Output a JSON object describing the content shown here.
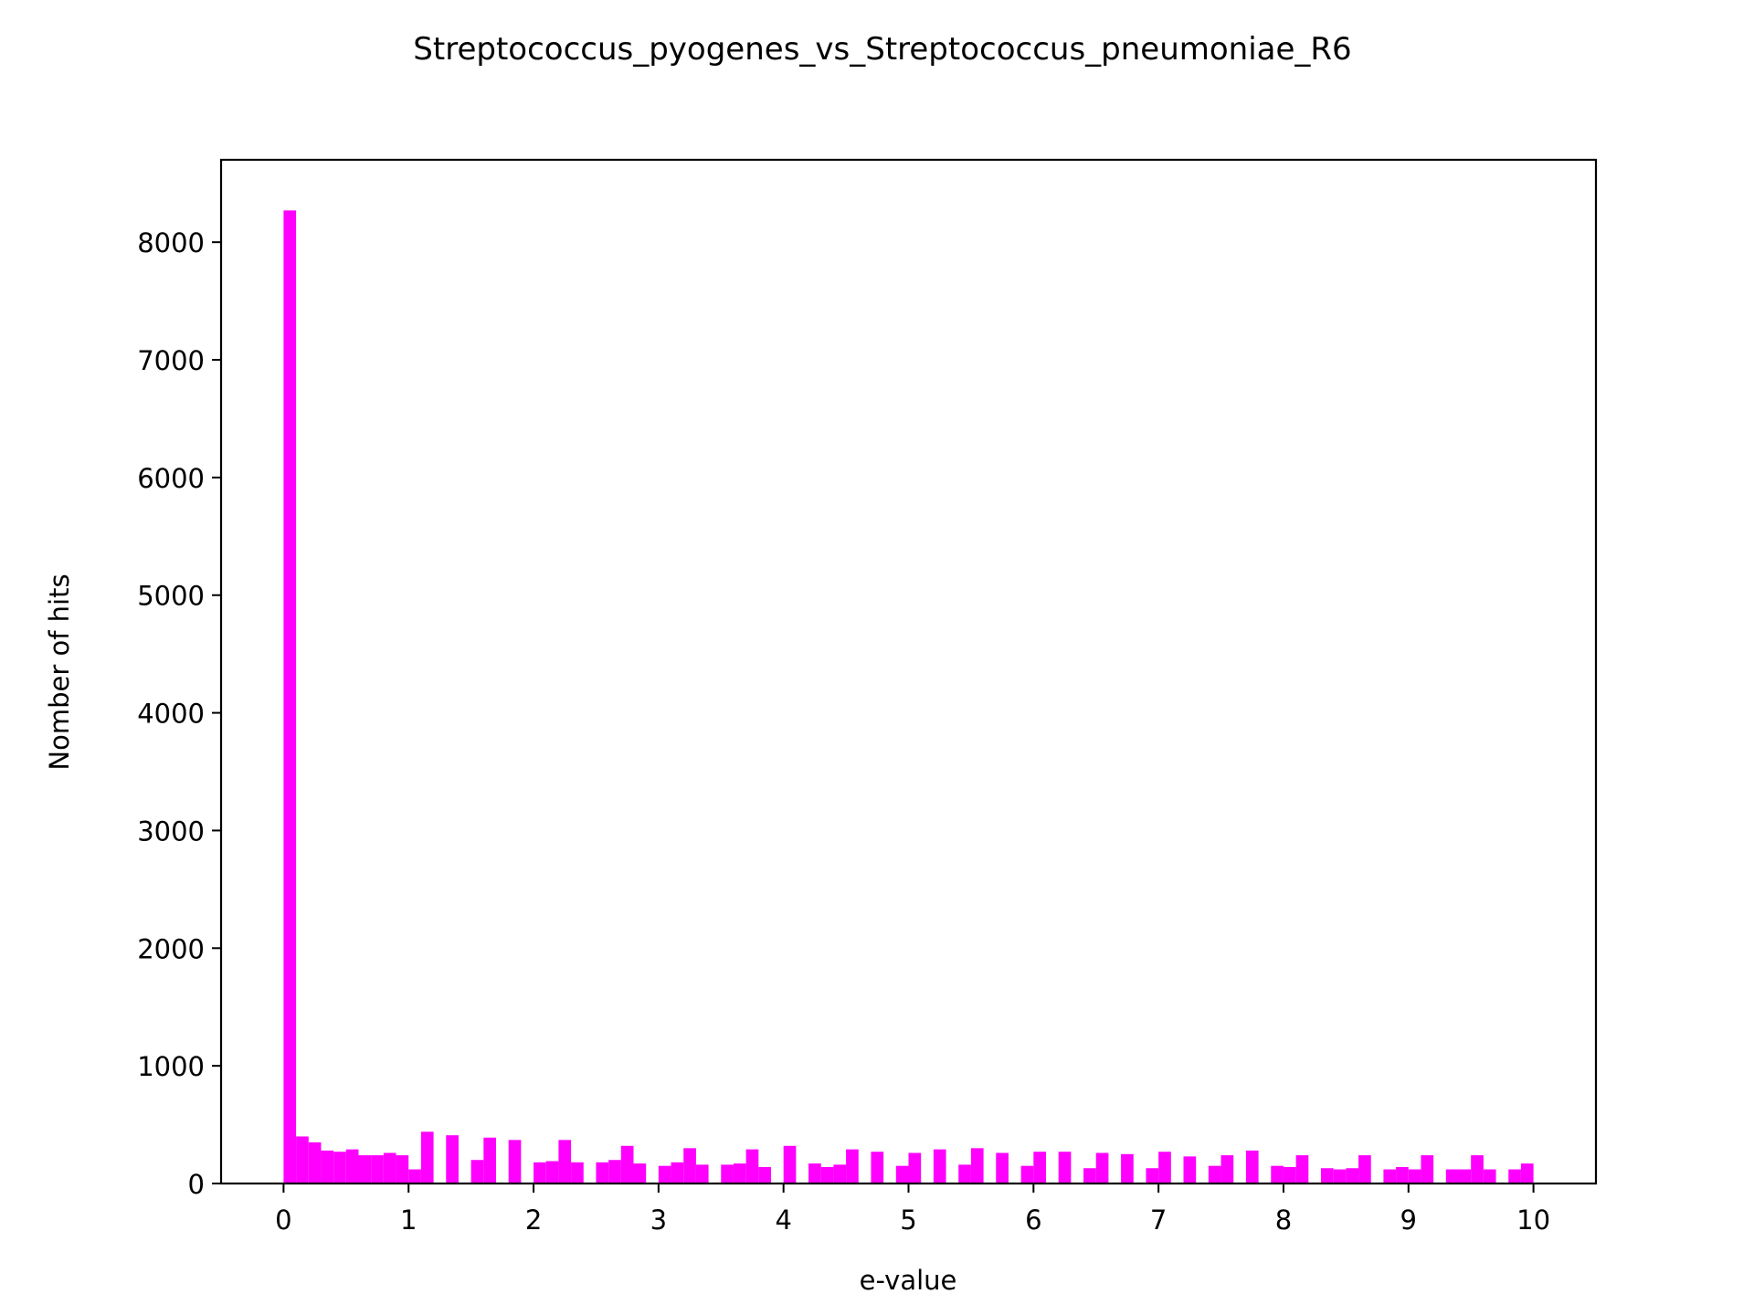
{
  "chart_data": {
    "type": "bar",
    "title": "Streptococcus_pyogenes_vs_Streptococcus_pneumoniae_R6",
    "xlabel": "e-value",
    "ylabel": "Nomber of hits",
    "xlim": [
      -0.5,
      10.5
    ],
    "ylim": [
      0,
      8700
    ],
    "xticks": [
      0,
      1,
      2,
      3,
      4,
      5,
      6,
      7,
      8,
      9,
      10
    ],
    "yticks": [
      0,
      1000,
      2000,
      3000,
      4000,
      5000,
      6000,
      7000,
      8000
    ],
    "xtick_labels": [
      "0",
      "1",
      "2",
      "3",
      "4",
      "5",
      "6",
      "7",
      "8",
      "9",
      "10"
    ],
    "ytick_labels": [
      "0",
      "1000",
      "2000",
      "3000",
      "4000",
      "5000",
      "6000",
      "7000",
      "8000"
    ],
    "bin_width": 0.1,
    "x": [
      0.0,
      0.1,
      0.2,
      0.3,
      0.4,
      0.5,
      0.6,
      0.7,
      0.8,
      0.9,
      1.0,
      1.1,
      1.2,
      1.3,
      1.4,
      1.5,
      1.6,
      1.7,
      1.8,
      1.9,
      2.0,
      2.1,
      2.2,
      2.3,
      2.4,
      2.5,
      2.6,
      2.7,
      2.8,
      2.9,
      3.0,
      3.1,
      3.2,
      3.3,
      3.4,
      3.5,
      3.6,
      3.7,
      3.8,
      3.9,
      4.0,
      4.1,
      4.2,
      4.3,
      4.4,
      4.5,
      4.6,
      4.7,
      4.8,
      4.9,
      5.0,
      5.1,
      5.2,
      5.3,
      5.4,
      5.5,
      5.6,
      5.7,
      5.8,
      5.9,
      6.0,
      6.1,
      6.2,
      6.3,
      6.4,
      6.5,
      6.6,
      6.7,
      6.8,
      6.9,
      7.0,
      7.1,
      7.2,
      7.3,
      7.4,
      7.5,
      7.6,
      7.7,
      7.8,
      7.9,
      8.0,
      8.1,
      8.2,
      8.3,
      8.4,
      8.5,
      8.6,
      8.7,
      8.8,
      8.9,
      9.0,
      9.1,
      9.2,
      9.3,
      9.4,
      9.5,
      9.6,
      9.7,
      9.8,
      9.9
    ],
    "values": [
      8270,
      400,
      350,
      280,
      270,
      290,
      240,
      240,
      260,
      240,
      120,
      440,
      0,
      410,
      0,
      200,
      390,
      0,
      370,
      0,
      180,
      190,
      370,
      180,
      0,
      180,
      200,
      320,
      170,
      0,
      150,
      180,
      300,
      160,
      0,
      160,
      170,
      290,
      140,
      0,
      320,
      0,
      170,
      140,
      160,
      290,
      0,
      270,
      0,
      150,
      260,
      0,
      290,
      0,
      160,
      300,
      0,
      260,
      0,
      150,
      270,
      0,
      270,
      0,
      130,
      260,
      0,
      250,
      0,
      130,
      270,
      0,
      230,
      0,
      150,
      240,
      0,
      280,
      0,
      150,
      140,
      240,
      0,
      130,
      120,
      130,
      240,
      0,
      120,
      140,
      120,
      240,
      0,
      120,
      120,
      240,
      120,
      0,
      120,
      170
    ],
    "bar_color": "#ff00ff",
    "grid": false,
    "legend": "none"
  }
}
